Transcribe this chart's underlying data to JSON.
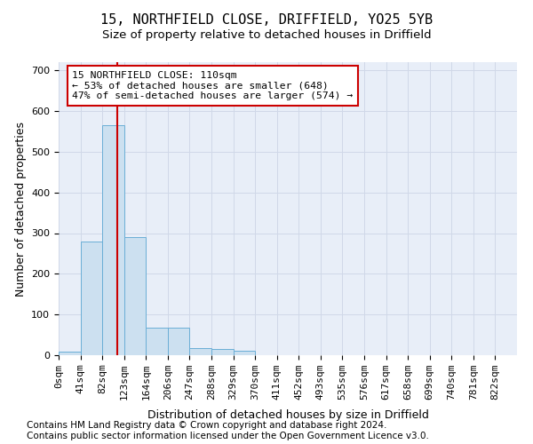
{
  "title1": "15, NORTHFIELD CLOSE, DRIFFIELD, YO25 5YB",
  "title2": "Size of property relative to detached houses in Driffield",
  "xlabel": "Distribution of detached houses by size in Driffield",
  "ylabel": "Number of detached properties",
  "bar_bins": [
    "0sqm",
    "41sqm",
    "82sqm",
    "123sqm",
    "164sqm",
    "206sqm",
    "247sqm",
    "288sqm",
    "329sqm",
    "370sqm",
    "411sqm",
    "452sqm",
    "493sqm",
    "535sqm",
    "576sqm",
    "617sqm",
    "658sqm",
    "699sqm",
    "740sqm",
    "781sqm",
    "822sqm"
  ],
  "bar_values": [
    8,
    280,
    565,
    290,
    68,
    68,
    17,
    15,
    10,
    0,
    0,
    0,
    0,
    0,
    0,
    0,
    0,
    0,
    0,
    0,
    0
  ],
  "bar_color": "#cce0f0",
  "bar_edge_color": "#6aaed6",
  "vline_sqm": 110,
  "bin_edges_sqm": [
    0,
    41,
    82,
    123,
    164,
    206,
    247,
    288,
    329,
    370,
    411,
    452,
    493,
    535,
    576,
    617,
    658,
    699,
    740,
    781,
    822
  ],
  "vline_color": "#cc0000",
  "annotation_text": "15 NORTHFIELD CLOSE: 110sqm\n← 53% of detached houses are smaller (648)\n47% of semi-detached houses are larger (574) →",
  "annotation_box_color": "#ffffff",
  "annotation_box_edge": "#cc0000",
  "ylim": [
    0,
    720
  ],
  "yticks": [
    0,
    100,
    200,
    300,
    400,
    500,
    600,
    700
  ],
  "grid_color": "#d0d8e8",
  "bg_color": "#e8eef8",
  "footnote1": "Contains HM Land Registry data © Crown copyright and database right 2024.",
  "footnote2": "Contains public sector information licensed under the Open Government Licence v3.0.",
  "title_fontsize": 11,
  "axis_label_fontsize": 9,
  "tick_fontsize": 8,
  "footnote_fontsize": 7.5
}
